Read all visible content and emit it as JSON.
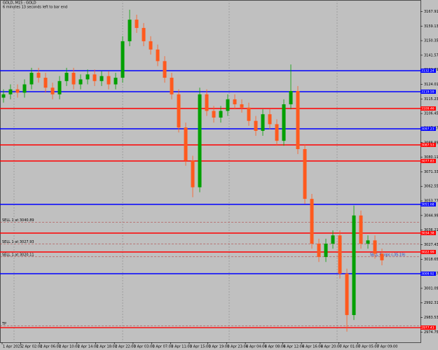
{
  "chart_data": {
    "type": "candlestick",
    "title": "GOLD, M15 : GOLD",
    "subtitle": "6 minutes 13 seconds left to bar end",
    "open": [
      3116,
      3118,
      3121,
      3119,
      3124,
      3131,
      3128,
      3122,
      3118,
      3126,
      3131,
      3124,
      3127,
      3130,
      3126,
      3129,
      3124,
      3128,
      3150,
      3163,
      3158,
      3150,
      3145,
      3138,
      3128,
      3118,
      3098,
      3078,
      3062,
      3118,
      3108,
      3104,
      3108,
      3115,
      3112,
      3110,
      3102,
      3096,
      3106,
      3100,
      3090,
      3112,
      3120,
      3085,
      3055,
      3028,
      3020,
      3028,
      3033,
      3010,
      2985,
      3045,
      3028,
      3030,
      3022
    ],
    "high": [
      3121,
      3124,
      3124,
      3127,
      3134,
      3134,
      3131,
      3125,
      3129,
      3134,
      3134,
      3130,
      3133,
      3133,
      3132,
      3132,
      3131,
      3153,
      3169,
      3166,
      3161,
      3153,
      3148,
      3141,
      3131,
      3121,
      3101,
      3081,
      3122,
      3121,
      3111,
      3111,
      3118,
      3118,
      3115,
      3113,
      3105,
      3109,
      3109,
      3103,
      3115,
      3136,
      3123,
      3088,
      3058,
      3031,
      3031,
      3036,
      3036,
      3013,
      3051,
      3048,
      3033,
      3033,
      3025
    ],
    "low": [
      3113,
      3115,
      3116,
      3116,
      3121,
      3125,
      3119,
      3115,
      3115,
      3123,
      3121,
      3121,
      3124,
      3123,
      3123,
      3121,
      3121,
      3125,
      3147,
      3155,
      3147,
      3142,
      3135,
      3125,
      3115,
      3095,
      3075,
      3056,
      3059,
      3105,
      3101,
      3101,
      3105,
      3109,
      3107,
      3099,
      3093,
      3093,
      3097,
      3087,
      3087,
      3109,
      3082,
      3052,
      3025,
      3017,
      3017,
      3025,
      3007,
      2975,
      2982,
      3025,
      3025,
      3019,
      3015
    ],
    "close": [
      3118,
      3121,
      3119,
      3124,
      3131,
      3128,
      3122,
      3118,
      3126,
      3131,
      3124,
      3127,
      3130,
      3126,
      3129,
      3124,
      3128,
      3150,
      3163,
      3158,
      3150,
      3145,
      3138,
      3128,
      3118,
      3098,
      3078,
      3062,
      3118,
      3108,
      3104,
      3108,
      3115,
      3112,
      3110,
      3102,
      3096,
      3106,
      3100,
      3090,
      3112,
      3120,
      3085,
      3055,
      3028,
      3020,
      3028,
      3033,
      3010,
      2985,
      3045,
      3028,
      3030,
      3022,
      3018
    ],
    "up_color": "#00a000",
    "down_color": "#ff5a1e",
    "ylim": [
      2969,
      3174
    ],
    "yticks": [
      2974.75,
      2983.53,
      2992.31,
      3001.09,
      3009.87,
      3018.65,
      3027.43,
      3036.21,
      3044.99,
      3053.77,
      3062.55,
      3071.33,
      3080.11,
      3088.89,
      3097.67,
      3106.45,
      3115.23,
      3124.01,
      3132.79,
      3141.57,
      3150.35,
      3159.13,
      3167.91
    ],
    "x_labels": [
      "1 Apr 2025",
      "2 Apr 02:00",
      "2 Apr 06:00",
      "2 Apr 10:00",
      "2 Apr 14:00",
      "2 Apr 18:00",
      "2 Apr 22:00",
      "3 Apr 03:00",
      "3 Apr 07:00",
      "3 Apr 11:00",
      "3 Apr 15:00",
      "3 Apr 19:00",
      "3 Apr 23:00",
      "4 Apr 04:00",
      "4 Apr 08:00",
      "4 Apr 12:00",
      "4 Apr 16:00",
      "4 Apr 20:00",
      "7 Apr 01:00",
      "7 Apr 05:00",
      "7 Apr 09:00"
    ],
    "levels": [
      {
        "value": 3132.24,
        "color": "#0000ff"
      },
      {
        "value": 3119.59,
        "color": "#0000ff"
      },
      {
        "value": 3109.46,
        "color": "#ff0000"
      },
      {
        "value": 3097.23,
        "color": "#0000ff"
      },
      {
        "value": 3087.53,
        "color": "#ff0000"
      },
      {
        "value": 3077.83,
        "color": "#ff0000"
      },
      {
        "value": 3051.68,
        "color": "#0000ff"
      },
      {
        "value": 3034.38,
        "color": "#ff0000"
      },
      {
        "value": 3022.99,
        "color": "#ff0000"
      },
      {
        "value": 3009.92,
        "color": "#0000ff"
      },
      {
        "value": 2977.43,
        "color": "#ff0000"
      }
    ],
    "trades": [
      {
        "label": "SELL 1 at 3040.89",
        "price": 3040.89
      },
      {
        "label": "SELL 1 at 3027.93",
        "price": 3027.93
      },
      {
        "label": "SELL 1 at 3020.11",
        "price": 3020.11
      },
      {
        "label": "TP",
        "price": 2978.5
      }
    ],
    "position_label": "SELL 0 pips (-35.19)"
  }
}
